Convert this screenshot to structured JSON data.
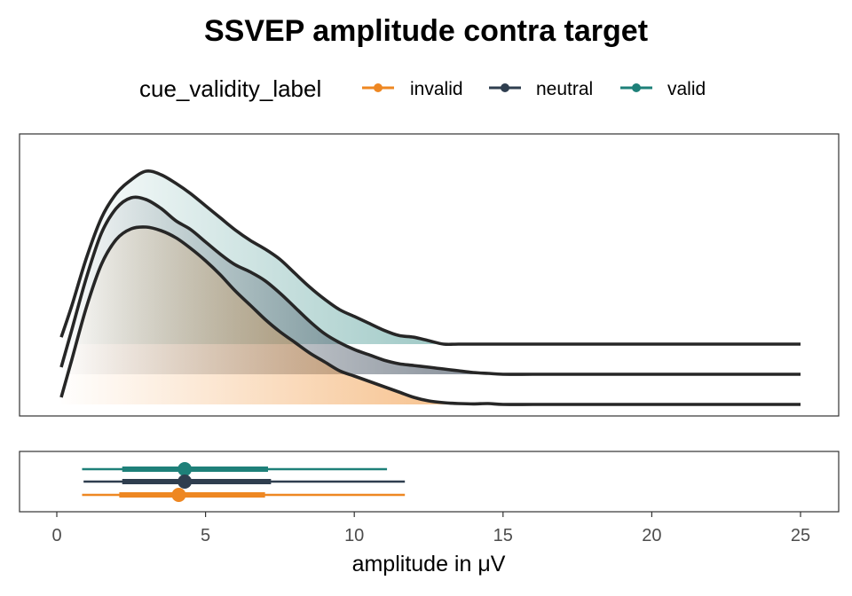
{
  "chart_data": {
    "type": "area",
    "title": "SSVEP amplitude contra target",
    "xlabel": "amplitude in μV",
    "legend": {
      "title": "cue_validity_label",
      "placement": "top",
      "entries": [
        {
          "label": "invalid",
          "color": "#ee8722"
        },
        {
          "label": "neutral",
          "color": "#2f3e4f"
        },
        {
          "label": "valid",
          "color": "#1e8079"
        }
      ]
    },
    "xlim": [
      0,
      25
    ],
    "x_ticks": [
      0,
      5,
      10,
      15,
      20,
      25
    ],
    "x_tick_labels": [
      "0",
      "5",
      "10",
      "15",
      "20",
      "25"
    ],
    "grid": false,
    "density_x": [
      0.15,
      0.5,
      1.0,
      1.5,
      2.0,
      2.5,
      3.0,
      3.5,
      4.0,
      4.5,
      5.0,
      5.5,
      6.0,
      6.5,
      7.0,
      7.5,
      8.0,
      8.5,
      9.0,
      9.5,
      10.0,
      10.5,
      11.0,
      11.5,
      12.0,
      12.5,
      13.0,
      13.5,
      14.0,
      14.5,
      15.0,
      16.0,
      17.0,
      18.0,
      19.0,
      20.0,
      21.0,
      22.0,
      23.0,
      24.0,
      25.0
    ],
    "series": [
      {
        "name": "invalid",
        "color": "#ee8722",
        "density": [
          0.04,
          0.25,
          0.55,
          0.79,
          0.93,
          0.99,
          1.0,
          0.98,
          0.94,
          0.88,
          0.81,
          0.73,
          0.64,
          0.56,
          0.48,
          0.41,
          0.35,
          0.29,
          0.24,
          0.19,
          0.16,
          0.13,
          0.1,
          0.07,
          0.04,
          0.02,
          0.01,
          0.005,
          0.003,
          0.005,
          0.0,
          0.0,
          0.0,
          0.0,
          0.0,
          0.0,
          0.0,
          0.0,
          0.0,
          0.0,
          0.0
        ],
        "mean": 4.1,
        "interval_66": [
          2.1,
          7.0
        ],
        "interval_95": [
          0.85,
          11.7
        ]
      },
      {
        "name": "neutral",
        "color": "#2f3e4f",
        "density": [
          0.04,
          0.25,
          0.55,
          0.8,
          0.94,
          1.0,
          0.99,
          0.94,
          0.87,
          0.82,
          0.75,
          0.68,
          0.62,
          0.58,
          0.53,
          0.46,
          0.38,
          0.3,
          0.23,
          0.18,
          0.14,
          0.11,
          0.08,
          0.06,
          0.05,
          0.04,
          0.03,
          0.02,
          0.01,
          0.005,
          0.0,
          0.0,
          0.0,
          0.0,
          0.0,
          0.0,
          0.0,
          0.0,
          0.0,
          0.0,
          0.0
        ],
        "mean": 4.3,
        "interval_66": [
          2.2,
          7.2
        ],
        "interval_95": [
          0.9,
          11.7
        ]
      },
      {
        "name": "valid",
        "color": "#1e8079",
        "density": [
          0.04,
          0.22,
          0.5,
          0.73,
          0.87,
          0.95,
          1.0,
          0.98,
          0.93,
          0.87,
          0.8,
          0.73,
          0.66,
          0.6,
          0.55,
          0.49,
          0.41,
          0.33,
          0.26,
          0.2,
          0.16,
          0.12,
          0.08,
          0.05,
          0.04,
          0.02,
          0.0,
          0.0,
          0.0,
          0.0,
          0.0,
          0.0,
          0.0,
          0.0,
          0.0,
          0.0,
          0.0,
          0.0,
          0.0,
          0.0,
          0.0
        ],
        "mean": 4.3,
        "interval_66": [
          2.2,
          7.1
        ],
        "interval_95": [
          0.85,
          11.1
        ]
      }
    ]
  }
}
